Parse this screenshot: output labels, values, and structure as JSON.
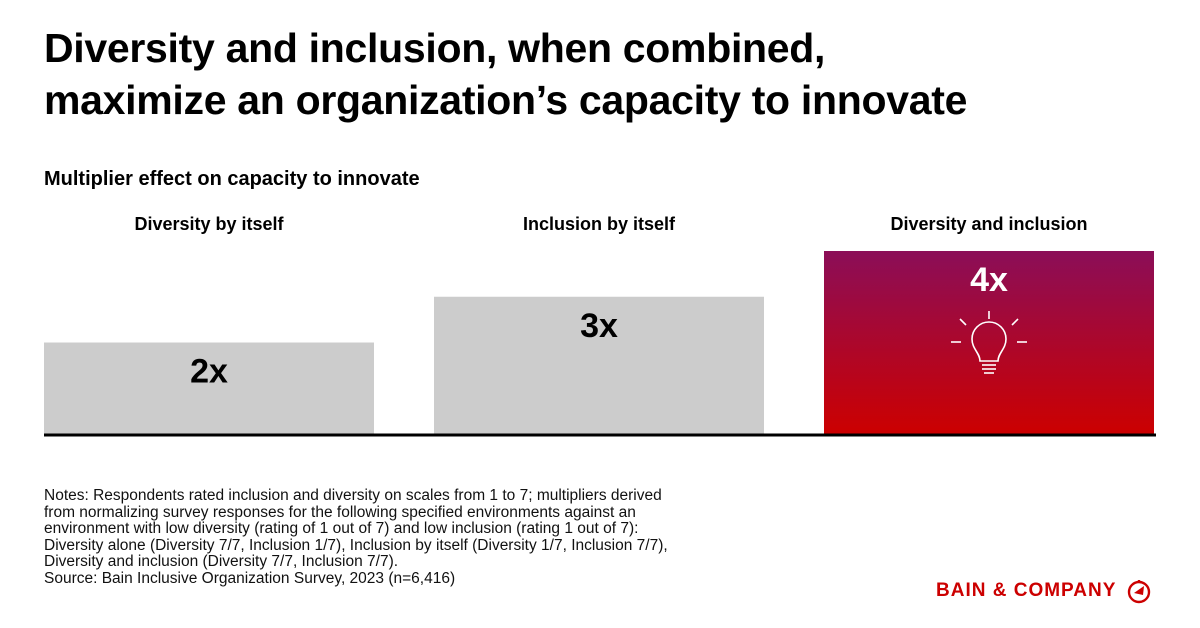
{
  "title_line1": "Diversity and inclusion, when combined,",
  "title_line2": "maximize an organization’s capacity to innovate",
  "chart_data": {
    "type": "bar",
    "title": "Multiplier effect on capacity to innovate",
    "categories": [
      "Diversity by itself",
      "Inclusion by itself",
      "Diversity and inclusion"
    ],
    "values": [
      2,
      3,
      4
    ],
    "data_labels": [
      "2x",
      "3x",
      "4x"
    ],
    "xlabel": "",
    "ylabel": "",
    "ylim": [
      0,
      4
    ],
    "grid": false,
    "bar_colors": [
      "#cccccc",
      "#cccccc",
      "gradient"
    ],
    "highlight_gradient": [
      "#8b0e58",
      "#cc0000"
    ],
    "highlight_icon": "lightbulb-icon"
  },
  "notes": [
    "Notes: Respondents rated inclusion and diversity on scales from 1 to 7; multipliers derived",
    "from normalizing survey responses for the following specified environments against an",
    "environment with low diversity (rating of 1 out of 7) and low inclusion (rating 1 out of 7):",
    "Diversity alone (Diversity 7/7, Inclusion 1/7), Inclusion by itself (Diversity 1/7, Inclusion 7/7),",
    "Diversity and inclusion (Diversity 7/7, Inclusion 7/7).",
    "Source: Bain Inclusive Organization Survey, 2023 (n=6,416)"
  ],
  "brand": {
    "name": "BAIN & COMPANY",
    "color": "#cc0000",
    "icon": "bain-logo-icon"
  }
}
